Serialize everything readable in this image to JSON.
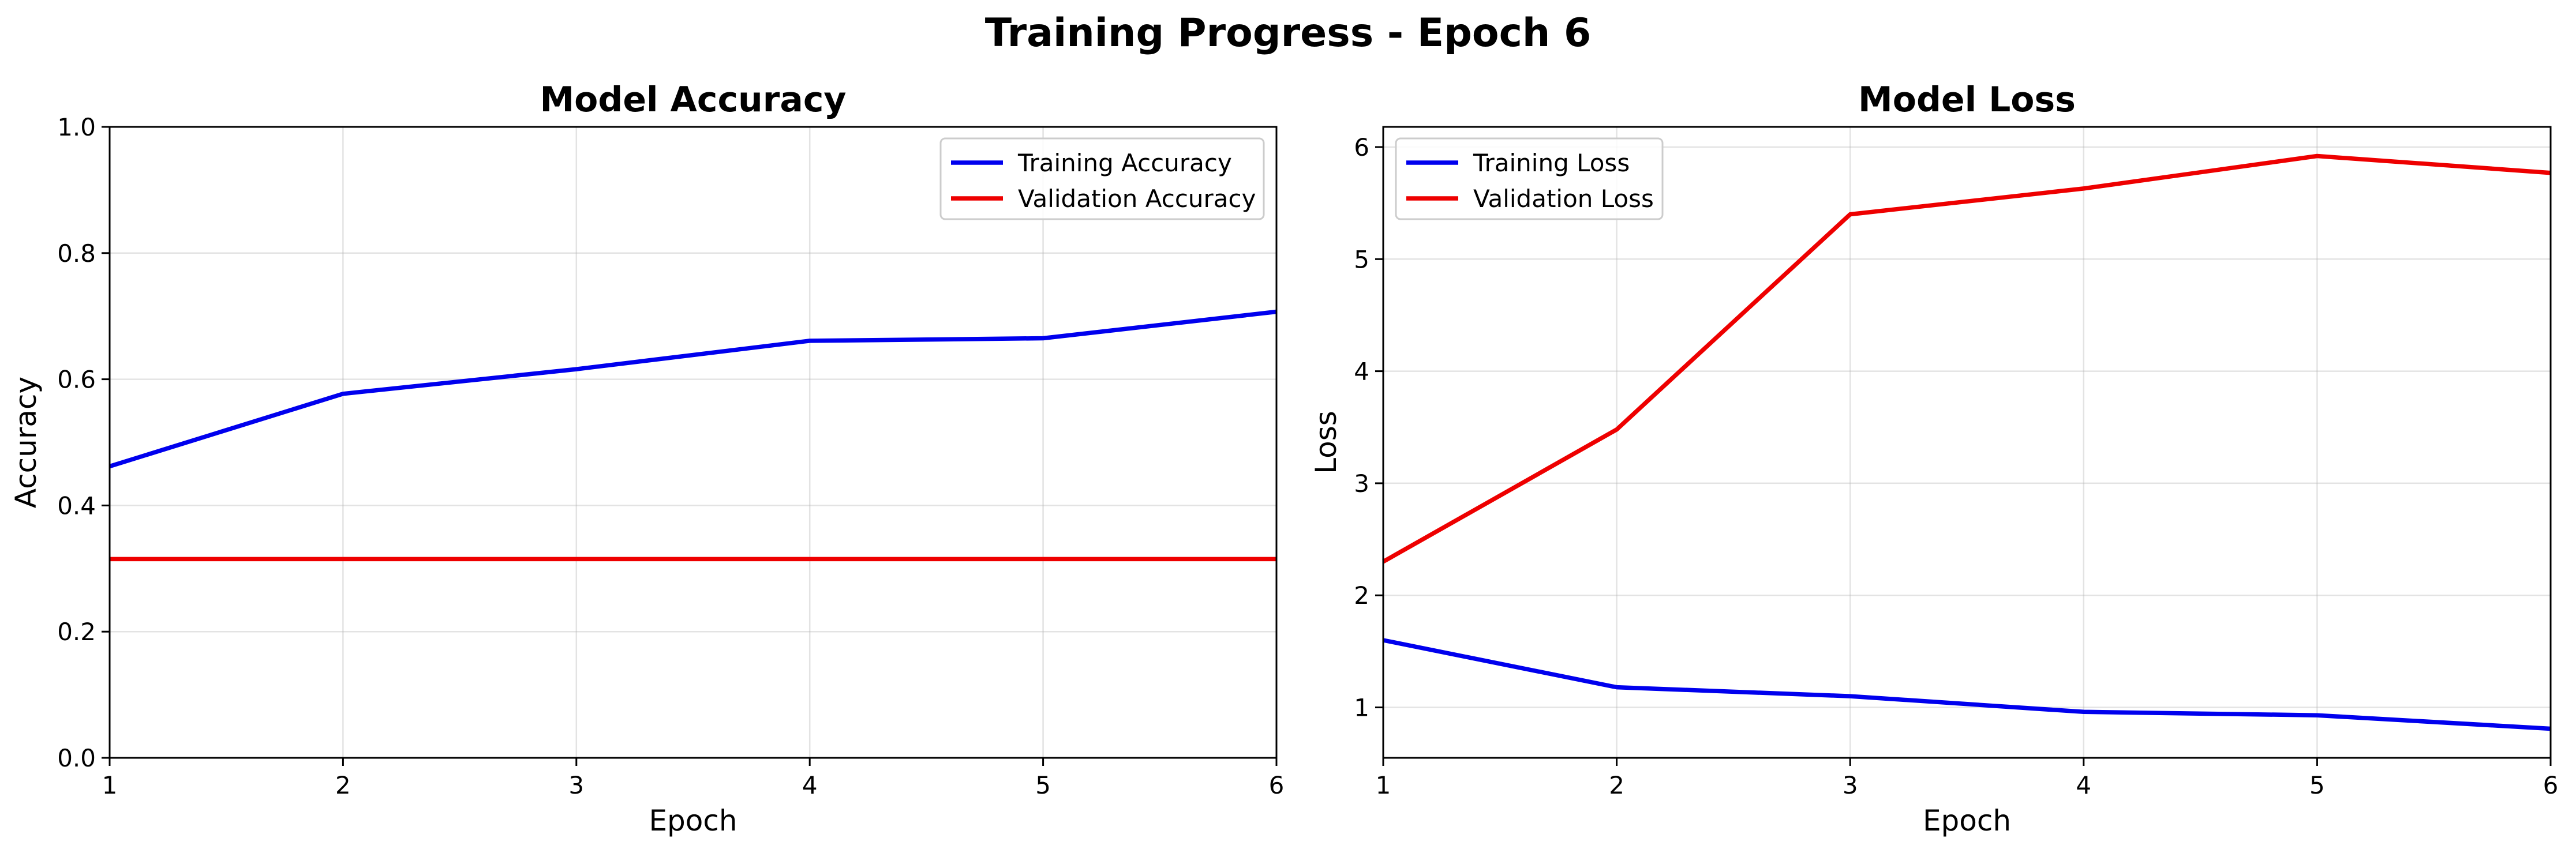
{
  "figure": {
    "title": "Training Progress - Epoch 6"
  },
  "chart_data": [
    {
      "type": "line",
      "title": "Model Accuracy",
      "xlabel": "Epoch",
      "ylabel": "Accuracy",
      "x": [
        1,
        2,
        3,
        4,
        5,
        6
      ],
      "xlim": [
        1,
        6
      ],
      "ylim": [
        0.0,
        1.0
      ],
      "xticks": [
        "1",
        "2",
        "3",
        "4",
        "5",
        "6"
      ],
      "yticks": [
        0.0,
        0.2,
        0.4,
        0.6,
        0.8,
        1.0
      ],
      "ytick_labels": [
        "0.0",
        "0.2",
        "0.4",
        "0.6",
        "0.8",
        "1.0"
      ],
      "grid": true,
      "legend_position": "top-right",
      "series": [
        {
          "name": "Training Accuracy",
          "color": "#0000ee",
          "values": [
            0.462,
            0.577,
            0.616,
            0.661,
            0.665,
            0.707
          ]
        },
        {
          "name": "Validation Accuracy",
          "color": "#ee0000",
          "values": [
            0.315,
            0.315,
            0.315,
            0.315,
            0.315,
            0.315
          ]
        }
      ]
    },
    {
      "type": "line",
      "title": "Model Loss",
      "xlabel": "Epoch",
      "ylabel": "Loss",
      "x": [
        1,
        2,
        3,
        4,
        5,
        6
      ],
      "xlim": [
        1,
        6
      ],
      "ylim": [
        0.55,
        6.18
      ],
      "xticks": [
        "1",
        "2",
        "3",
        "4",
        "5",
        "6"
      ],
      "yticks": [
        1,
        2,
        3,
        4,
        5,
        6
      ],
      "ytick_labels": [
        "1",
        "2",
        "3",
        "4",
        "5",
        "6"
      ],
      "grid": true,
      "legend_position": "top-left",
      "series": [
        {
          "name": "Training Loss",
          "color": "#0000ee",
          "values": [
            1.6,
            1.18,
            1.1,
            0.96,
            0.93,
            0.81
          ]
        },
        {
          "name": "Validation Loss",
          "color": "#ee0000",
          "values": [
            2.3,
            3.48,
            5.4,
            5.63,
            5.92,
            5.77
          ]
        }
      ]
    }
  ]
}
